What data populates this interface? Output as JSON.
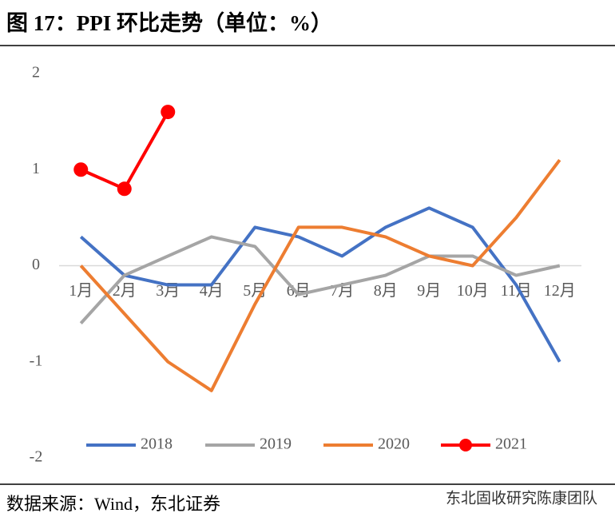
{
  "chart_data": {
    "type": "line",
    "title": "图 17：PPI 环比走势（单位：%）",
    "categories": [
      "1月",
      "2月",
      "3月",
      "4月",
      "5月",
      "6月",
      "7月",
      "8月",
      "9月",
      "10月",
      "11月",
      "12月"
    ],
    "series": [
      {
        "name": "2018",
        "color": "#4472c4",
        "values": [
          0.3,
          -0.1,
          -0.2,
          -0.2,
          0.4,
          0.3,
          0.1,
          0.4,
          0.6,
          0.4,
          -0.2,
          -1.0
        ]
      },
      {
        "name": "2019",
        "color": "#a5a5a5",
        "values": [
          -0.6,
          -0.1,
          0.1,
          0.3,
          0.2,
          -0.3,
          -0.2,
          -0.1,
          0.1,
          0.1,
          -0.1,
          0.0
        ]
      },
      {
        "name": "2020",
        "color": "#ed7d31",
        "values": [
          0.0,
          -0.5,
          -1.0,
          -1.3,
          -0.4,
          0.4,
          0.4,
          0.3,
          0.1,
          0.0,
          0.5,
          1.1
        ]
      },
      {
        "name": "2021",
        "color": "#ff0000",
        "markers": true,
        "values": [
          1.0,
          0.8,
          1.6,
          null,
          null,
          null,
          null,
          null,
          null,
          null,
          null,
          null
        ]
      }
    ],
    "ylim": [
      -2,
      2
    ],
    "yticks": [
      -2,
      -1,
      0,
      1,
      2
    ],
    "grid": false,
    "legend": "bottom",
    "source": "数据来源：Wind，东北证券",
    "watermark": "东北固收研究陈康团队"
  }
}
